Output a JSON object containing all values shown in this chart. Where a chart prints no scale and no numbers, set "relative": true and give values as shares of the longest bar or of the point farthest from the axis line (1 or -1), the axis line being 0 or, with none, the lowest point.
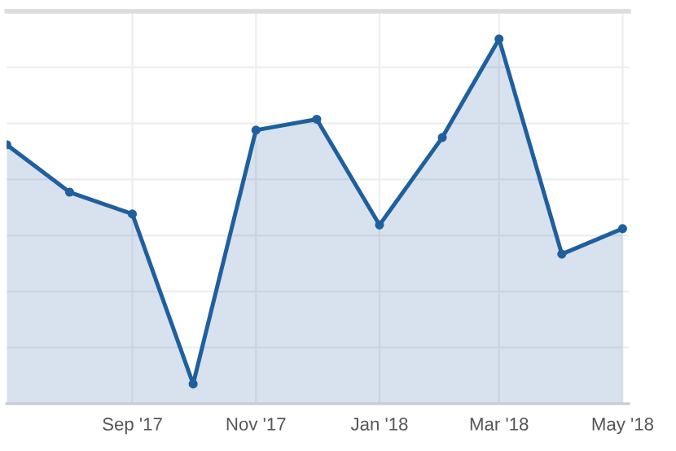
{
  "chart_data": {
    "type": "area",
    "relative": true,
    "x": [
      "2017-07-01",
      "2017-08-01",
      "2017-09-01",
      "2017-10-01",
      "2017-11-01",
      "2017-12-01",
      "2018-01-01",
      "2018-02-01",
      "2018-03-01",
      "2018-04-01",
      "2018-05-01"
    ],
    "series": [
      {
        "color": "#1f5f9e",
        "values": [
          0.71,
          0.58,
          0.52,
          0.054,
          0.75,
          0.78,
          0.49,
          0.73,
          1,
          0.41,
          0.48
        ]
      }
    ],
    "xlim": [
      "2017-07-01",
      "2018-05-04"
    ],
    "xticks": [
      {
        "value": "2017-09-01",
        "label": "Sep '17"
      },
      {
        "value": "2017-11-01",
        "label": "Nov '17"
      },
      {
        "value": "2018-01-01",
        "label": "Jan '18"
      },
      {
        "value": "2018-03-01",
        "label": "Mar '18"
      },
      {
        "value": "2018-05-01",
        "label": "May '18"
      }
    ],
    "grid": true,
    "marker": "circle",
    "line_style": "solid",
    "tick_labels": "x"
  }
}
